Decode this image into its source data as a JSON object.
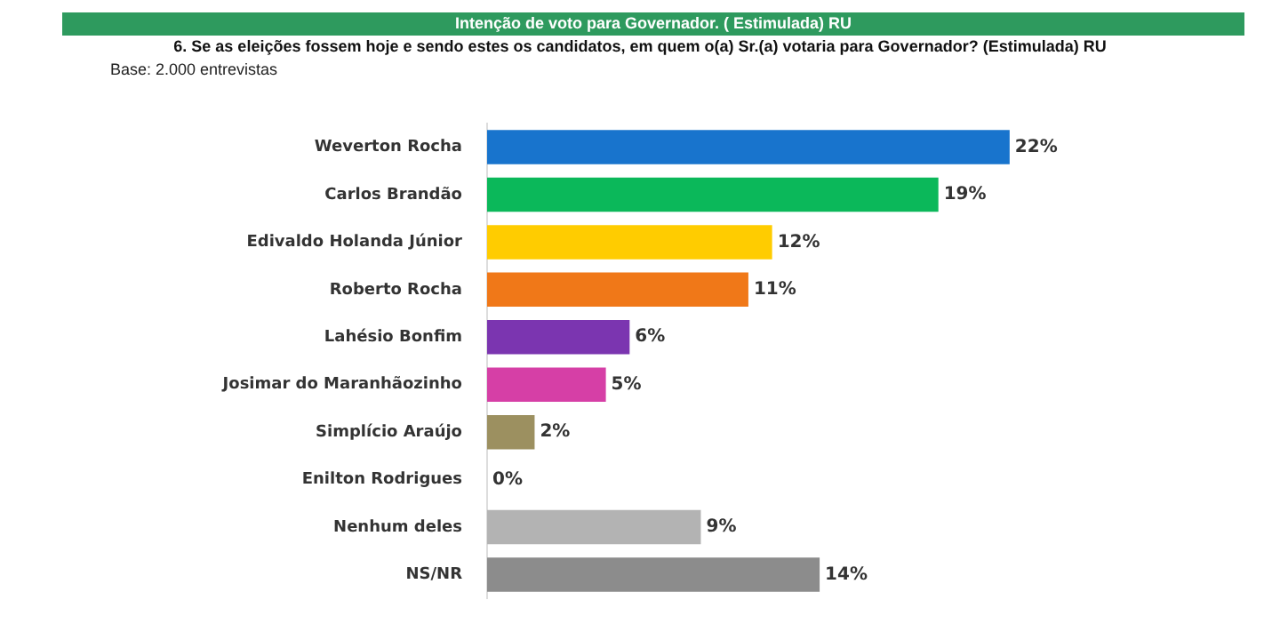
{
  "chart_data": {
    "type": "bar",
    "orientation": "horizontal",
    "title": "Intenção de voto para Governador. ( Estimulada) RU",
    "subtitle": "6. Se as eleições fossem hoje e sendo estes os candidatos, em quem o(a) Sr.(a) votaria para Governador? (Estimulada) RU",
    "annotations": [
      "Base: 2.000 entrevistas"
    ],
    "categories": [
      "Weverton Rocha",
      "Carlos Brandão",
      "Edivaldo Holanda Júnior",
      "Roberto Rocha",
      "Lahésio Bonfim",
      "Josimar do Maranhãozinho",
      "Simplício Araújo",
      "Enilton Rodrigues",
      "Nenhum deles",
      "NS/NR"
    ],
    "values": [
      22,
      19,
      12,
      11,
      6,
      5,
      2,
      0,
      9,
      14
    ],
    "colors": [
      "#1874cd",
      "#0bb85a",
      "#ffcc00",
      "#f07818",
      "#7b35b0",
      "#d63fa6",
      "#9c9060",
      "#ffffff",
      "#b3b3b3",
      "#8c8c8c"
    ],
    "value_labels": [
      "22%",
      "19%",
      "12%",
      "11%",
      "6%",
      "5%",
      "2%",
      "0%",
      "9%",
      "14%"
    ],
    "legend": false,
    "grid": false
  }
}
